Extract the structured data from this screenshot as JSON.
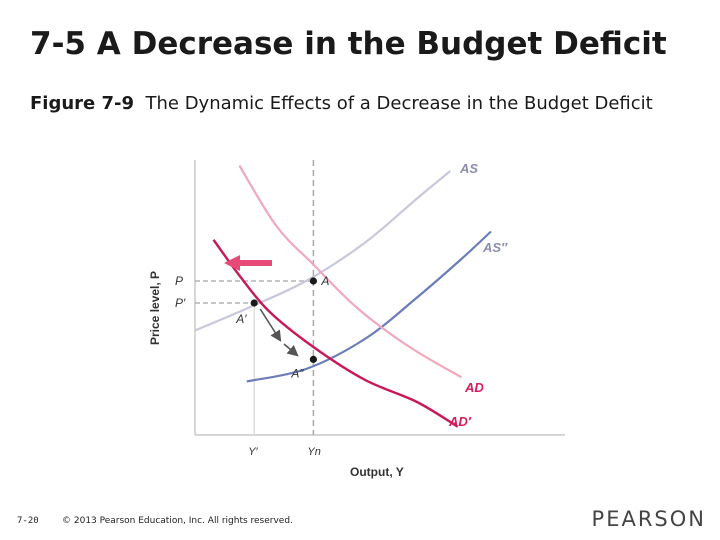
{
  "slide": {
    "title": "7-5 A Decrease in the Budget Deficit",
    "figure_number": "Figure 7-9",
    "figure_caption": "The Dynamic Effects of a Decrease in the Budget Deficit"
  },
  "footer": {
    "page_number": "7-20",
    "copyright": "© 2013 Pearson Education, Inc. All rights reserved.",
    "logo_text": "PEARSON"
  },
  "colors": {
    "as_curve": "#c8c8dc",
    "as_new_curve": "#6b7db8",
    "ad_curve": "#f0a8bc",
    "ad_new_curve": "#c8185a",
    "ad_label": "#d91b5c",
    "as_label": "#8a8fb0",
    "dash": "#a8a8a8",
    "axis": "#c8c8c8",
    "arrow_fill": "#e84a78",
    "path_arrow": "#555555"
  },
  "chart_data": {
    "type": "line",
    "title": "The Dynamic Effects of a Decrease in the Budget Deficit",
    "xlabel": "Output, Y",
    "ylabel": "Price level, P",
    "xlim": [
      0,
      10
    ],
    "ylim": [
      0,
      10
    ],
    "grid": false,
    "x_tick_labels": [
      "Y′",
      "Yn"
    ],
    "y_tick_labels": [
      "P",
      "P′"
    ],
    "series": [
      {
        "name": "AS",
        "label": "AS",
        "points": [
          [
            0.0,
            3.8
          ],
          [
            1.4,
            4.6
          ],
          [
            3.0,
            5.6
          ],
          [
            4.6,
            7.0
          ],
          [
            6.0,
            8.6
          ],
          [
            6.9,
            9.6
          ]
        ]
      },
      {
        "name": "AS_new",
        "label": "AS″",
        "points": [
          [
            1.4,
            1.95
          ],
          [
            3.0,
            2.4
          ],
          [
            4.6,
            3.5
          ],
          [
            6.0,
            5.0
          ],
          [
            7.2,
            6.4
          ],
          [
            8.0,
            7.4
          ]
        ]
      },
      {
        "name": "AD",
        "label": "AD",
        "points": [
          [
            1.2,
            9.8
          ],
          [
            2.2,
            7.6
          ],
          [
            3.2,
            6.2
          ],
          [
            4.4,
            4.6
          ],
          [
            5.8,
            3.2
          ],
          [
            7.2,
            2.1
          ]
        ]
      },
      {
        "name": "AD_new",
        "label": "AD′",
        "points": [
          [
            0.5,
            7.1
          ],
          [
            1.2,
            5.8
          ],
          [
            2.0,
            4.5
          ],
          [
            3.2,
            3.2
          ],
          [
            4.6,
            2.0
          ],
          [
            6.0,
            1.2
          ],
          [
            7.1,
            0.3
          ]
        ]
      }
    ],
    "points": [
      {
        "name": "A",
        "label": "A",
        "x": 3.2,
        "y": 5.6
      },
      {
        "name": "A_prime",
        "label": "A′",
        "x": 1.6,
        "y": 4.8
      },
      {
        "name": "A_dprime",
        "label": "A″",
        "x": 3.2,
        "y": 2.75
      }
    ],
    "x_ticks": [
      {
        "label": "Y′",
        "x": 1.6
      },
      {
        "label": "Yn",
        "x": 3.2
      }
    ],
    "y_ticks": [
      {
        "label": "P",
        "y": 5.6
      },
      {
        "label": "P′",
        "y": 4.8
      }
    ],
    "annotations": {
      "vertical_dashed_x": 3.2,
      "shift_arrow": "AD shifts left (arrow pointing left near top of AD′)",
      "adjustment_path": "Economy moves from A′ down along AD′ toward A″"
    }
  }
}
